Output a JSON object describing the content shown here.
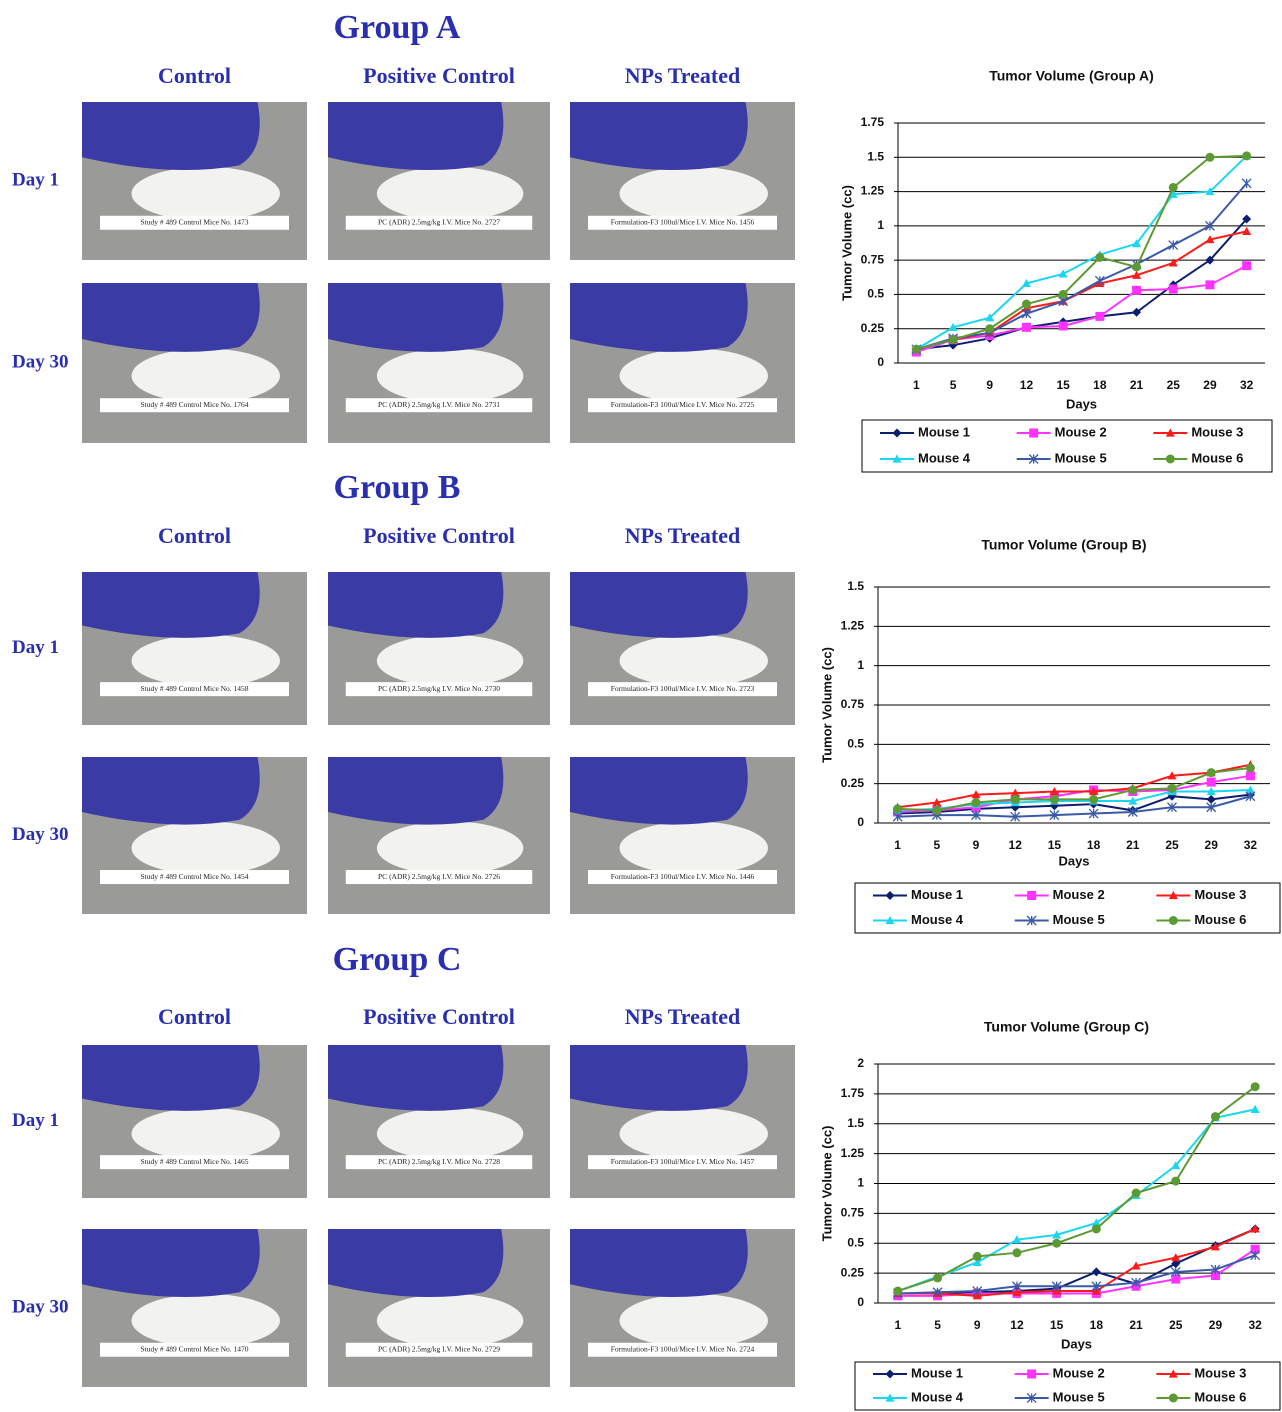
{
  "groups": [
    {
      "title": "Group A",
      "columns": [
        "Control",
        "Positive Control",
        "NPs Treated"
      ],
      "rows": [
        {
          "label": "Day 1",
          "cards": [
            "Study # 489 Control Mice No. 1473",
            "PC (ADR) 2.5mg/kg I.V. Mice No. 2727",
            "Formulation-F3 100ul/Mice I.V. Mice No. 1456"
          ]
        },
        {
          "label": "Day 30",
          "cards": [
            "Study # 489 Control Mice No. 1764",
            "PC (ADR) 2.5mg/kg I.V. Mice No. 2731",
            "Formulation-F3 100ul/Mice I.V. Mice No. 2725"
          ]
        }
      ]
    },
    {
      "title": "Group B",
      "columns": [
        "Control",
        "Positive Control",
        "NPs Treated"
      ],
      "rows": [
        {
          "label": "Day 1",
          "cards": [
            "Study # 489 Control Mice No. 1458",
            "PC (ADR) 2.5mg/kg I.V. Mice No. 2730",
            "Formulation-F3 100ul/Mice I.V. Mice No. 2723"
          ]
        },
        {
          "label": "Day 30",
          "cards": [
            "Study # 489 Control Mice No. 1454",
            "PC (ADR) 2.5mg/kg I.V. Mice No. 2726",
            "Formulation-F3 100ul/Mice I.V. Mice No. 1446"
          ]
        }
      ]
    },
    {
      "title": "Group C",
      "columns": [
        "Control",
        "Positive Control",
        "NPs Treated"
      ],
      "rows": [
        {
          "label": "Day 1",
          "cards": [
            "Study # 489 Control Mice No. 1465",
            "PC (ADR) 2.5mg/kg I.V. Mice No. 2728",
            "Formulation-F3 100ul/Mice I.V. Mice No. 1457"
          ]
        },
        {
          "label": "Day 30",
          "cards": [
            "Study # 489 Control Mice No. 1470",
            "PC (ADR) 2.5mg/kg I.V. Mice No. 2729",
            "Formulation-F3 100ul/Mice I.V. Mice No. 2724"
          ]
        }
      ]
    }
  ],
  "chart_data": [
    {
      "type": "line",
      "title": "Tumor Volume (Group A)",
      "x_label": "Days",
      "y_label": "Tumor Volume (cc)",
      "grid": true,
      "categories": [
        "1",
        "5",
        "9",
        "12",
        "15",
        "18",
        "21",
        "25",
        "29",
        "32"
      ],
      "ylim": [
        0,
        1.75
      ],
      "yticks": [
        0,
        0.25,
        0.5,
        0.75,
        1,
        1.25,
        1.5,
        1.75
      ],
      "series": [
        {
          "name": "Mouse 1",
          "color": "#0b1f6e",
          "marker": "diamond",
          "values": [
            0.1,
            0.13,
            0.18,
            0.26,
            0.3,
            0.34,
            0.37,
            0.57,
            0.75,
            1.05
          ]
        },
        {
          "name": "Mouse 2",
          "color": "#ff33ff",
          "marker": "square",
          "values": [
            0.08,
            0.17,
            0.2,
            0.26,
            0.27,
            0.34,
            0.53,
            0.54,
            0.57,
            0.71
          ]
        },
        {
          "name": "Mouse 3",
          "color": "#ff1a1a",
          "marker": "triangle",
          "values": [
            0.1,
            0.17,
            0.22,
            0.4,
            0.45,
            0.58,
            0.64,
            0.73,
            0.9,
            0.96
          ]
        },
        {
          "name": "Mouse 4",
          "color": "#1ad6f0",
          "marker": "triangle",
          "values": [
            0.1,
            0.26,
            0.33,
            0.58,
            0.65,
            0.79,
            0.87,
            1.23,
            1.25,
            1.51
          ]
        },
        {
          "name": "Mouse 5",
          "color": "#3a5aa8",
          "marker": "star",
          "values": [
            0.1,
            0.18,
            0.22,
            0.36,
            0.45,
            0.6,
            0.72,
            0.86,
            1.0,
            1.31
          ]
        },
        {
          "name": "Mouse 6",
          "color": "#5c9a34",
          "marker": "circle",
          "values": [
            0.1,
            0.17,
            0.25,
            0.43,
            0.5,
            0.77,
            0.7,
            1.28,
            1.5,
            1.51
          ]
        }
      ]
    },
    {
      "type": "line",
      "title": "Tumor Volume (Group B)",
      "x_label": "Days",
      "y_label": "Tumor Volume (cc)",
      "grid": true,
      "categories": [
        "1",
        "5",
        "9",
        "12",
        "15",
        "18",
        "21",
        "25",
        "29",
        "32"
      ],
      "ylim": [
        0,
        1.5
      ],
      "yticks": [
        0,
        0.25,
        0.5,
        0.75,
        1,
        1.25,
        1.5
      ],
      "series": [
        {
          "name": "Mouse 1",
          "color": "#0b1f6e",
          "marker": "diamond",
          "values": [
            0.06,
            0.07,
            0.09,
            0.1,
            0.11,
            0.12,
            0.08,
            0.17,
            0.15,
            0.18
          ]
        },
        {
          "name": "Mouse 2",
          "color": "#ff33ff",
          "marker": "square",
          "values": [
            0.07,
            0.08,
            0.1,
            0.15,
            0.17,
            0.21,
            0.2,
            0.21,
            0.26,
            0.3
          ]
        },
        {
          "name": "Mouse 3",
          "color": "#ff1a1a",
          "marker": "triangle",
          "values": [
            0.1,
            0.13,
            0.18,
            0.19,
            0.2,
            0.2,
            0.22,
            0.3,
            0.32,
            0.37
          ]
        },
        {
          "name": "Mouse 4",
          "color": "#1ad6f0",
          "marker": "triangle",
          "values": [
            0.08,
            0.09,
            0.12,
            0.13,
            0.14,
            0.14,
            0.14,
            0.2,
            0.2,
            0.21
          ]
        },
        {
          "name": "Mouse 5",
          "color": "#3a5aa8",
          "marker": "star",
          "values": [
            0.04,
            0.05,
            0.05,
            0.04,
            0.05,
            0.06,
            0.07,
            0.1,
            0.1,
            0.17
          ]
        },
        {
          "name": "Mouse 6",
          "color": "#5c9a34",
          "marker": "circle",
          "values": [
            0.09,
            0.08,
            0.13,
            0.15,
            0.15,
            0.15,
            0.21,
            0.22,
            0.32,
            0.35
          ]
        }
      ]
    },
    {
      "type": "line",
      "title": "Tumor Volume (Group C)",
      "x_label": "Days",
      "y_label": "Tumor Volume (cc)",
      "grid": true,
      "categories": [
        "1",
        "5",
        "9",
        "12",
        "15",
        "18",
        "21",
        "25",
        "29",
        "32"
      ],
      "ylim": [
        0,
        2
      ],
      "yticks": [
        0,
        0.25,
        0.5,
        0.75,
        1,
        1.25,
        1.5,
        1.75,
        2
      ],
      "series": [
        {
          "name": "Mouse 1",
          "color": "#0b1f6e",
          "marker": "diamond",
          "values": [
            0.08,
            0.08,
            0.09,
            0.1,
            0.12,
            0.26,
            0.16,
            0.33,
            0.48,
            0.62
          ]
        },
        {
          "name": "Mouse 2",
          "color": "#ff33ff",
          "marker": "square",
          "values": [
            0.06,
            0.06,
            0.08,
            0.08,
            0.08,
            0.08,
            0.14,
            0.2,
            0.23,
            0.45
          ]
        },
        {
          "name": "Mouse 3",
          "color": "#ff1a1a",
          "marker": "triangle",
          "values": [
            0.08,
            0.08,
            0.06,
            0.09,
            0.1,
            0.1,
            0.31,
            0.38,
            0.47,
            0.62
          ]
        },
        {
          "name": "Mouse 4",
          "color": "#1ad6f0",
          "marker": "triangle",
          "values": [
            0.1,
            0.22,
            0.34,
            0.53,
            0.57,
            0.67,
            0.9,
            1.15,
            1.55,
            1.62
          ]
        },
        {
          "name": "Mouse 5",
          "color": "#3a5aa8",
          "marker": "star",
          "values": [
            0.08,
            0.09,
            0.1,
            0.14,
            0.14,
            0.14,
            0.17,
            0.26,
            0.28,
            0.4
          ]
        },
        {
          "name": "Mouse 6",
          "color": "#5c9a34",
          "marker": "circle",
          "values": [
            0.1,
            0.21,
            0.39,
            0.42,
            0.5,
            0.62,
            0.92,
            1.02,
            1.56,
            1.81
          ]
        }
      ]
    }
  ]
}
